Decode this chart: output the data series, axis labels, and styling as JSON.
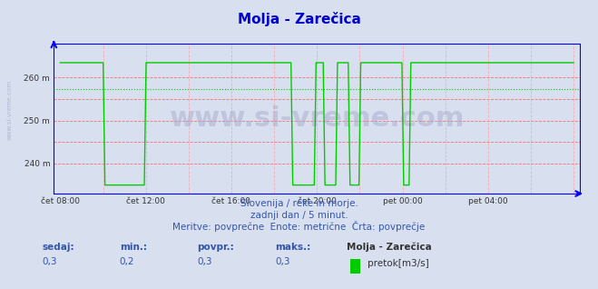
{
  "title": "Molja - Zarečica",
  "title_color": "#0000cc",
  "bg_color": "#d8e0f0",
  "plot_bg_color": "#d8e0f0",
  "line_color": "#00cc00",
  "avg_line_color": "#00cc00",
  "grid_color_h": "#ff6666",
  "grid_color_v": "#ff9999",
  "axis_color": "#0000ff",
  "ylabel": "",
  "yticks": [
    235,
    240,
    245,
    250,
    255,
    260,
    265
  ],
  "ytick_labels": [
    "",
    "240 m",
    "",
    "250 m",
    "",
    "260 m",
    ""
  ],
  "ylim": [
    233,
    268
  ],
  "xtick_labels": [
    "čet 08:00",
    "čet 12:00",
    "čet 16:00",
    "čet 20:00",
    "pet 00:00",
    "pet 04:00"
  ],
  "avg_value": 257.3,
  "peak_value": 263.5,
  "low_value": 235.0,
  "watermark": "www.si-vreme.com",
  "subtitle1": "Slovenija / reke in morje.",
  "subtitle2": "zadnji dan / 5 minut.",
  "subtitle3": "Meritve: povprečne  Enote: metrične  Črta: povprečje",
  "legend_label": "pretok[m3/s]",
  "stat_labels": [
    "sedaj:",
    "min.:",
    "povpr.:",
    "maks.:"
  ],
  "stat_values": [
    "0,3",
    "0,2",
    "0,3",
    "0,3"
  ],
  "station_label": "Molja - Zarečica",
  "sidewater": "www.si-vreme.com"
}
